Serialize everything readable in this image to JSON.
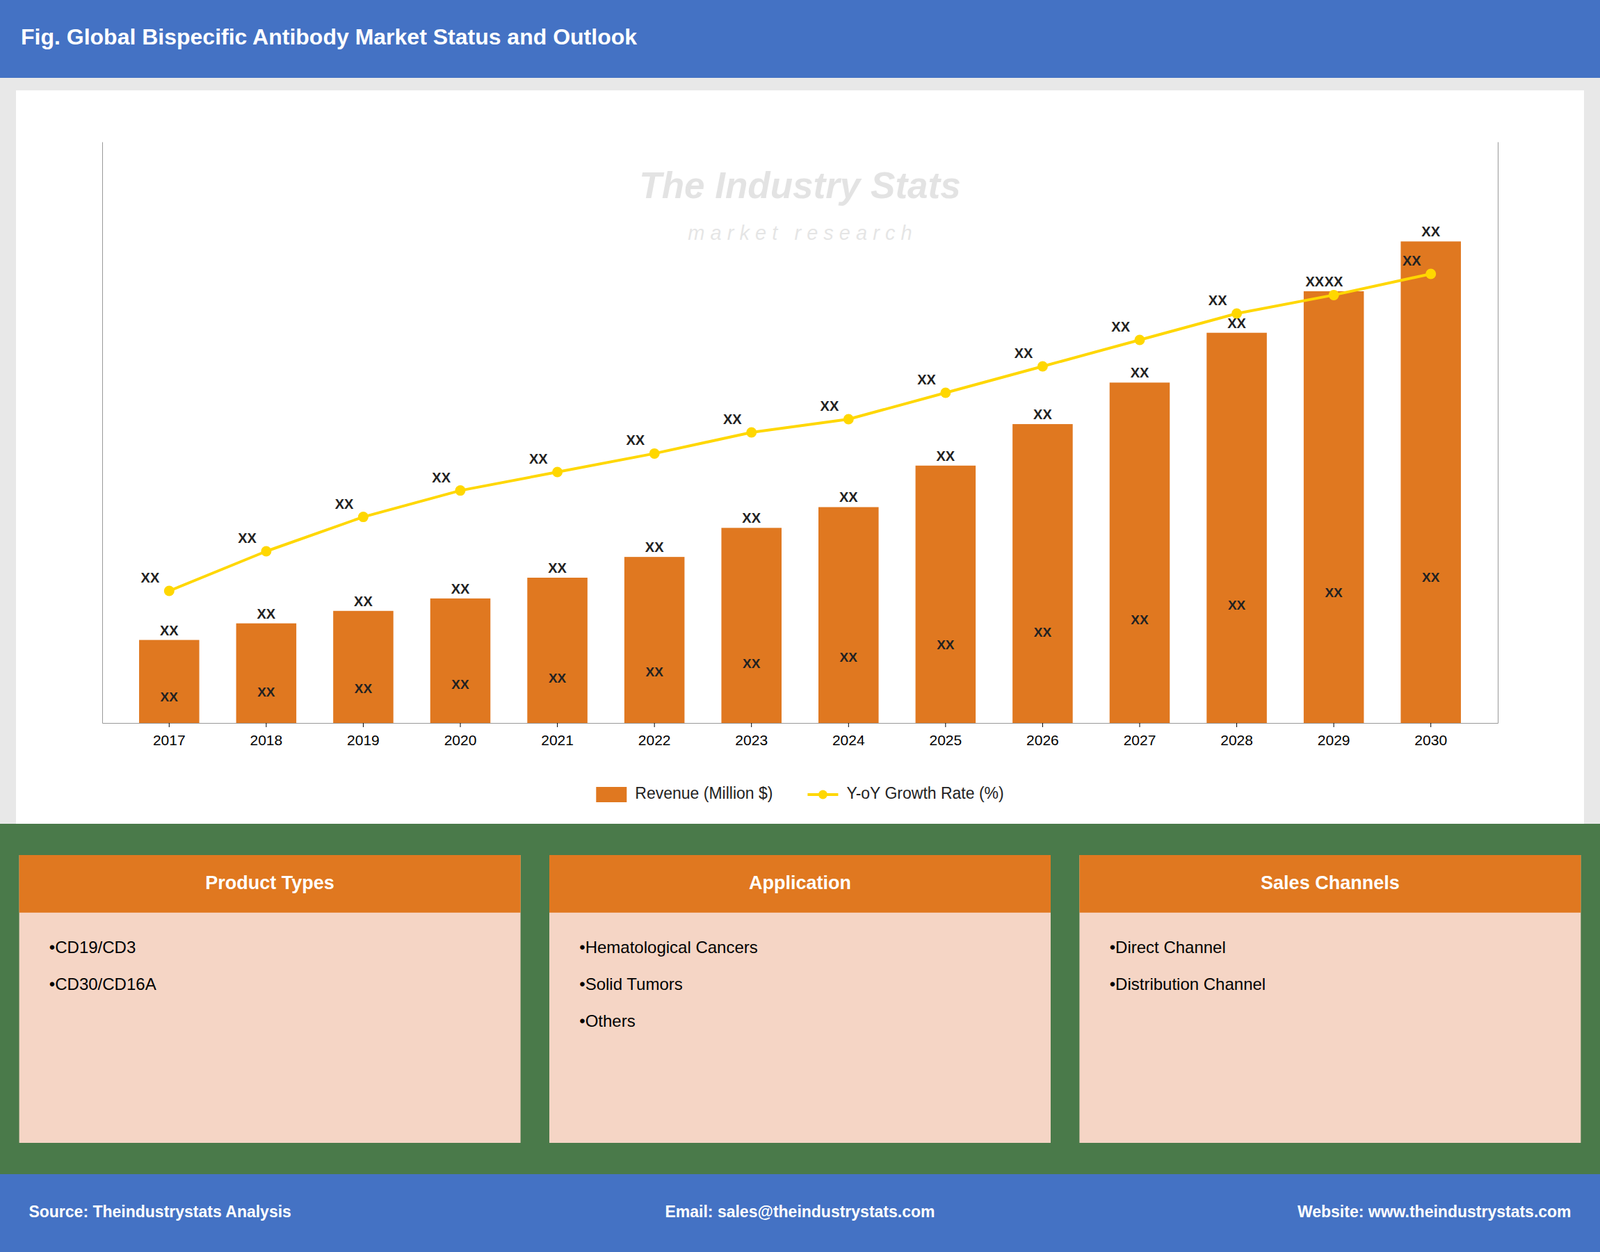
{
  "chart_data": {
    "type": "bar",
    "title": "Fig. Global Bispecific Antibody Market Status and Outlook",
    "categories": [
      "2017",
      "2018",
      "2019",
      "2020",
      "2021",
      "2022",
      "2023",
      "2024",
      "2025",
      "2026",
      "2027",
      "2028",
      "2029",
      "2030"
    ],
    "series": [
      {
        "name": "Revenue (Million $)",
        "type": "bar",
        "color": "#E07820",
        "values": [
          1.0,
          1.2,
          1.35,
          1.5,
          1.75,
          2.0,
          2.35,
          2.6,
          3.1,
          3.6,
          4.1,
          4.7,
          5.2,
          5.8
        ],
        "value_labels": [
          "XX",
          "XX",
          "XX",
          "XX",
          "XX",
          "XX",
          "XX",
          "XX",
          "XX",
          "XX",
          "XX",
          "XX",
          "XX",
          "XX"
        ]
      },
      {
        "name": "Y-oY Growth Rate (%)",
        "type": "line",
        "axis": "y2",
        "color": "#FFD700",
        "marker": "circle",
        "values": [
          0.5,
          0.65,
          0.78,
          0.88,
          0.95,
          1.02,
          1.1,
          1.15,
          1.25,
          1.35,
          1.45,
          1.55,
          1.62,
          1.7
        ],
        "value_labels": [
          "XX",
          "XX",
          "XX",
          "XX",
          "XX",
          "XX",
          "XX",
          "XX",
          "XX",
          "XX",
          "XX",
          "XX",
          "XX",
          "XX"
        ]
      }
    ],
    "ylim": [
      0,
      7.0
    ],
    "yticks": [],
    "y2lim": [
      0,
      2.2
    ],
    "y2ticks": [],
    "tick_labels": "x",
    "legend": "bottom",
    "annotations": [
      "The Industry Stats",
      "m a r k e t   r e s e a r c h"
    ]
  },
  "cards": [
    {
      "title": "Product Types",
      "items": [
        "•CD19/CD3",
        "•CD30/CD16A"
      ]
    },
    {
      "title": "Application",
      "items": [
        "•Hematological Cancers",
        "•Solid Tumors",
        "•Others"
      ]
    },
    {
      "title": "Sales Channels",
      "items": [
        "•Direct Channel",
        "•Distribution Channel"
      ]
    }
  ],
  "footer": [
    "Source: Theindustrystats Analysis",
    "Email: sales@theindustrystats.com",
    "Website: www.theindustrystats.com"
  ]
}
